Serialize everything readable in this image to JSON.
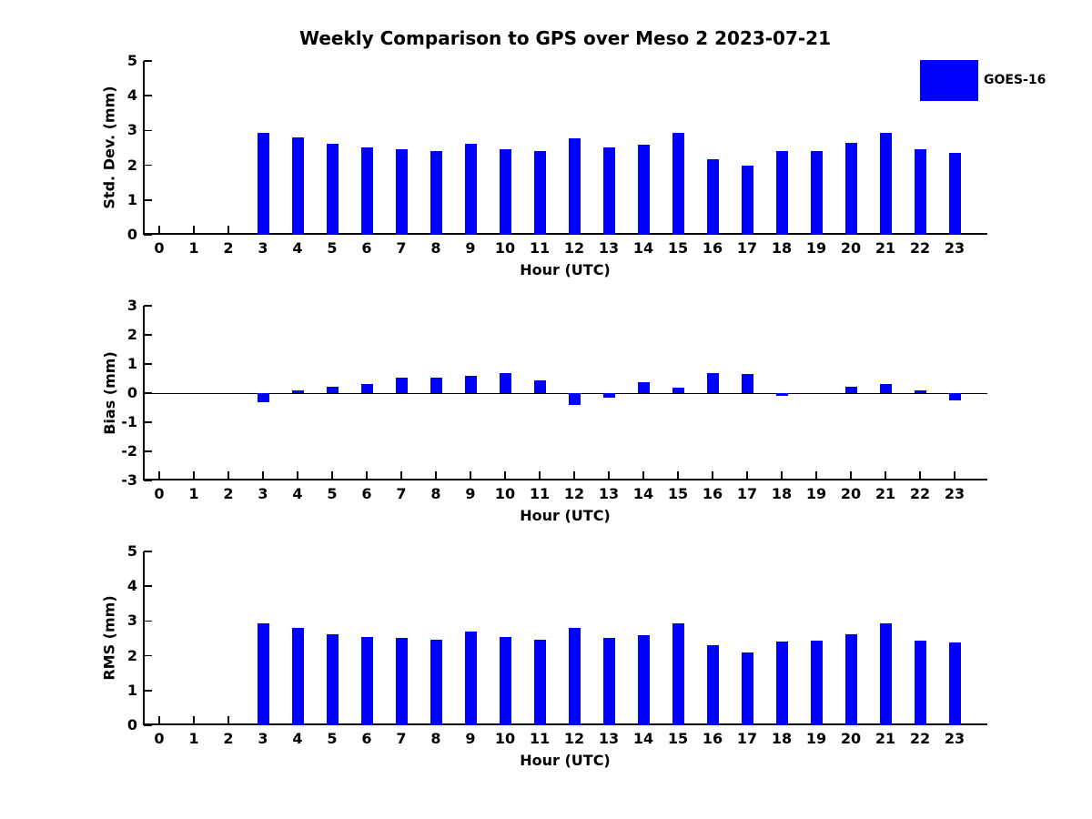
{
  "title": "Weekly Comparison to GPS over Meso 2 2023-07-21",
  "legend": {
    "label": "GOES-16",
    "color": "#0000ff"
  },
  "colors": {
    "bar": "#0000ff",
    "axis": "#000000",
    "text": "#000000",
    "background": "#ffffff"
  },
  "chart_data": [
    {
      "type": "bar",
      "title": "Weekly Comparison to GPS over Meso 2 2023-07-21",
      "series_name": "GOES-16",
      "ylabel": "Std. Dev. (mm)",
      "xlabel": "Hour (UTC)",
      "ylim": [
        0,
        5
      ],
      "yticks": [
        0,
        1,
        2,
        3,
        4,
        5
      ],
      "grid": false,
      "legend_position": "upper right outside plot",
      "categories": [
        0,
        1,
        2,
        3,
        4,
        5,
        6,
        7,
        8,
        9,
        10,
        11,
        12,
        13,
        14,
        15,
        16,
        17,
        18,
        19,
        20,
        21,
        22,
        23
      ],
      "values": [
        null,
        null,
        null,
        2.93,
        2.8,
        2.61,
        2.51,
        2.47,
        2.42,
        2.63,
        2.46,
        2.42,
        2.77,
        2.51,
        2.58,
        2.93,
        2.18,
        2.0,
        2.42,
        2.42,
        2.64,
        2.93,
        2.45,
        2.36
      ]
    },
    {
      "type": "bar",
      "title": "",
      "series_name": "GOES-16",
      "ylabel": "Bias (mm)",
      "xlabel": "Hour (UTC)",
      "ylim": [
        -3,
        3
      ],
      "yticks": [
        3,
        2,
        1,
        0,
        -1,
        -2,
        -3
      ],
      "grid": false,
      "zero_line": true,
      "categories": [
        0,
        1,
        2,
        3,
        4,
        5,
        6,
        7,
        8,
        9,
        10,
        11,
        12,
        13,
        14,
        15,
        16,
        17,
        18,
        19,
        20,
        21,
        22,
        23
      ],
      "values": [
        null,
        null,
        null,
        -0.3,
        0.1,
        0.22,
        0.3,
        0.54,
        0.52,
        0.6,
        0.7,
        0.43,
        -0.4,
        -0.15,
        0.37,
        0.2,
        0.7,
        0.65,
        -0.1,
        0.0,
        0.22,
        0.3,
        0.08,
        -0.26
      ]
    },
    {
      "type": "bar",
      "title": "",
      "series_name": "GOES-16",
      "ylabel": "RMS (mm)",
      "xlabel": "Hour (UTC)",
      "ylim": [
        0,
        5
      ],
      "yticks": [
        0,
        1,
        2,
        3,
        4,
        5
      ],
      "grid": false,
      "categories": [
        0,
        1,
        2,
        3,
        4,
        5,
        6,
        7,
        8,
        9,
        10,
        11,
        12,
        13,
        14,
        15,
        16,
        17,
        18,
        19,
        20,
        21,
        22,
        23
      ],
      "values": [
        null,
        null,
        null,
        2.93,
        2.79,
        2.62,
        2.53,
        2.52,
        2.47,
        2.7,
        2.55,
        2.47,
        2.8,
        2.51,
        2.6,
        2.92,
        2.3,
        2.1,
        2.42,
        2.43,
        2.62,
        2.92,
        2.44,
        2.38
      ]
    }
  ]
}
